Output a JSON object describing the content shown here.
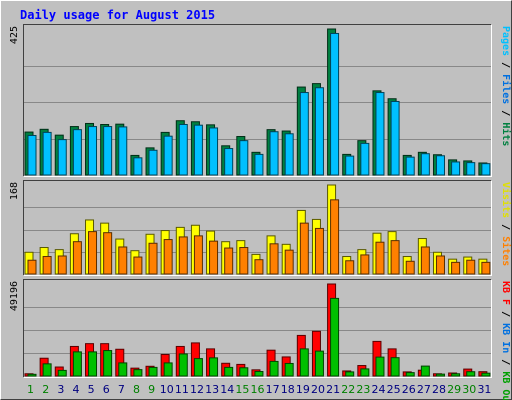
{
  "chart_data": {
    "type": "bar",
    "title": "Daily usage for August 2015",
    "categories": [
      "1",
      "2",
      "3",
      "4",
      "5",
      "6",
      "7",
      "8",
      "9",
      "10",
      "11",
      "12",
      "13",
      "14",
      "15",
      "16",
      "17",
      "18",
      "19",
      "20",
      "21",
      "22",
      "23",
      "24",
      "25",
      "26",
      "27",
      "28",
      "29",
      "30",
      "31"
    ],
    "weekend_days": [
      "1",
      "2",
      "8",
      "9",
      "15",
      "16",
      "22",
      "23",
      "29",
      "30"
    ],
    "panels": [
      {
        "name": "hits-files",
        "max_label": "425",
        "ylim": [
          0,
          425
        ],
        "series": [
          {
            "name": "Hits",
            "color": "#008040",
            "values": [
              125,
              133,
              116,
              141,
              150,
              147,
              148,
              57,
              79,
              124,
              158,
              155,
              146,
              85,
              112,
              66,
              132,
              128,
              256,
              266,
              425,
              60,
              100,
              245,
              222,
              57,
              66,
              59,
              44,
              41,
              35
            ]
          },
          {
            "name": "Files",
            "color": "#00c0ff",
            "values": [
              115,
              124,
              103,
              132,
              141,
              141,
              140,
              50,
              72,
              113,
              147,
              145,
              137,
              77,
              100,
              60,
              126,
              120,
              240,
              254,
              412,
              55,
              92,
              240,
              214,
              52,
              62,
              56,
              38,
              36,
              33
            ]
          }
        ],
        "legend": [
          {
            "text": "Pages",
            "color": "#00c0ff"
          },
          {
            "text": " / ",
            "color": "#000000"
          },
          {
            "text": "Files",
            "color": "#0070e0"
          },
          {
            "text": " / ",
            "color": "#000000"
          },
          {
            "text": "Hits",
            "color": "#008040"
          }
        ]
      },
      {
        "name": "visits-sites",
        "max_label": "168",
        "ylim": [
          0,
          168
        ],
        "series": [
          {
            "name": "Visits",
            "color": "#ffff00",
            "values": [
              41,
              50,
              46,
              76,
              102,
              96,
              66,
              44,
              75,
              82,
              88,
              92,
              81,
              61,
              63,
              37,
              72,
              56,
              120,
              103,
              168,
              33,
              46,
              77,
              80,
              33,
              67,
              41,
              28,
              32,
              28
            ]
          },
          {
            "name": "Sites",
            "color": "#ff8000",
            "values": [
              26,
              33,
              34,
              61,
              80,
              78,
              51,
              32,
              58,
              65,
              70,
              72,
              62,
              49,
              50,
              27,
              57,
              45,
              96,
              86,
              140,
              25,
              36,
              60,
              63,
              24,
              51,
              34,
              22,
              26,
              22
            ]
          }
        ],
        "legend": [
          {
            "text": "Visits",
            "color": "#e0e000"
          },
          {
            "text": " / ",
            "color": "#000000"
          },
          {
            "text": "Sites",
            "color": "#ff8000"
          }
        ]
      },
      {
        "name": "kbytes",
        "max_label": "49196",
        "ylim": [
          0,
          49196
        ],
        "series": [
          {
            "name": "KB F",
            "color": "#ff0000",
            "values": [
              1200,
              9500,
              4800,
              15800,
              17300,
              17300,
              14300,
              4200,
              5200,
              11500,
              15800,
              17700,
              14500,
              6800,
              6200,
              3300,
              13800,
              10200,
              21700,
              23900,
              49196,
              2700,
              5600,
              18500,
              14500,
              2200,
              3100,
              1200,
              1600,
              3700,
              2300
            ]
          },
          {
            "name": "KB In",
            "color": "#0080ff",
            "values": [
              0,
              0,
              0,
              0,
              0,
              0,
              0,
              0,
              0,
              0,
              0,
              0,
              0,
              0,
              0,
              0,
              0,
              0,
              0,
              0,
              0,
              0,
              0,
              0,
              0,
              0,
              0,
              0,
              0,
              0,
              0
            ]
          },
          {
            "name": "KB Out",
            "color": "#00c000",
            "values": [
              900,
              6500,
              3000,
              12900,
              12900,
              13600,
              7000,
              3400,
              4600,
              7000,
              11800,
              9300,
              9700,
              4600,
              4400,
              2400,
              7800,
              6700,
              14500,
              13300,
              41500,
              2200,
              3800,
              10100,
              9800,
              1800,
              5300,
              1000,
              1200,
              2300,
              1500
            ]
          }
        ],
        "legend": [
          {
            "text": "KB F",
            "color": "#ff0000"
          },
          {
            "text": " / ",
            "color": "#000000"
          },
          {
            "text": "KB In",
            "color": "#0070e0"
          },
          {
            "text": " / ",
            "color": "#000000"
          },
          {
            "text": "KB Out",
            "color": "#00a000"
          }
        ]
      }
    ]
  },
  "colors": {
    "background": "#c0c0c0",
    "title_text": "#0000ff",
    "weekday_label": "#000080",
    "weekend_label": "#008000",
    "gridline": "#888888"
  }
}
